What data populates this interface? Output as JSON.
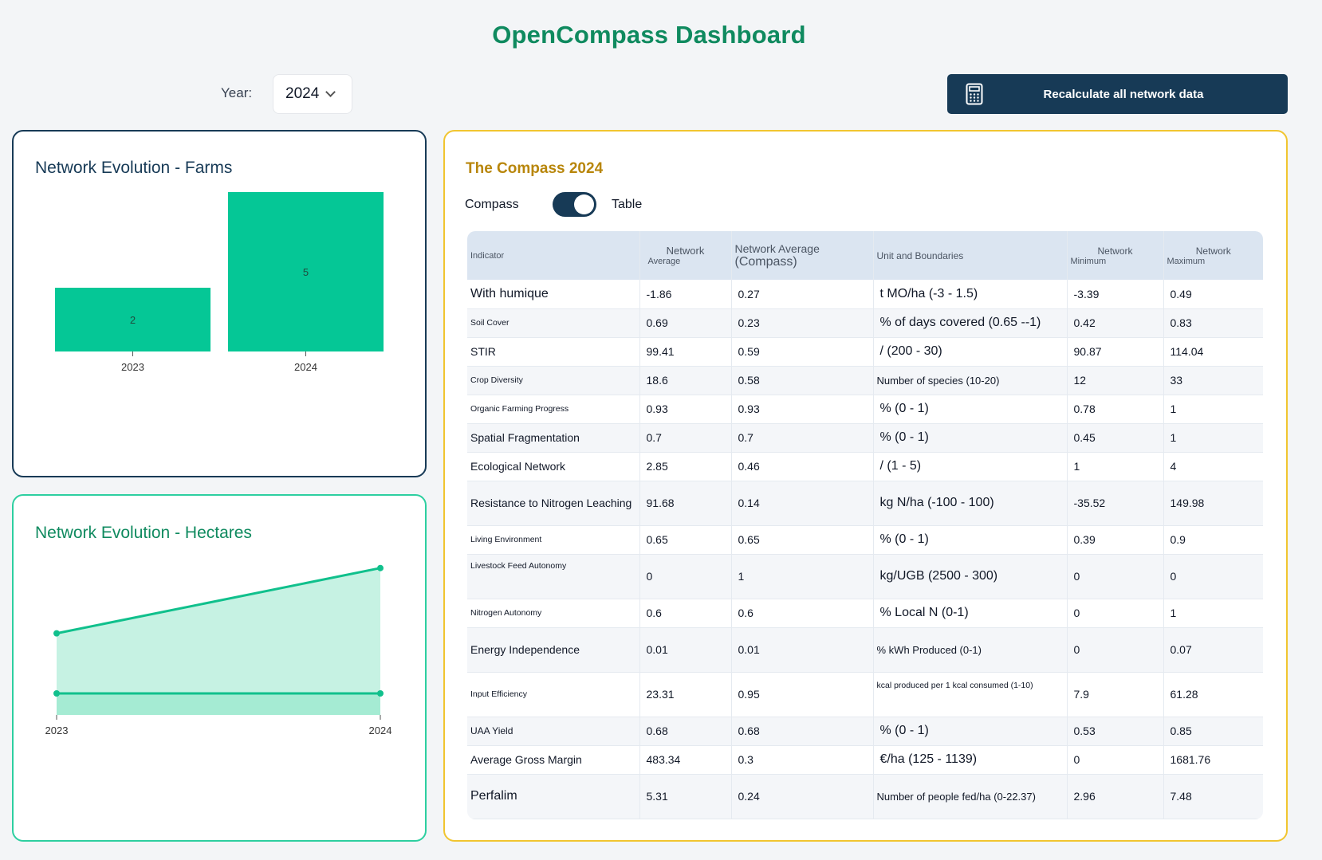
{
  "header": {
    "title": "OpenCompass Dashboard"
  },
  "year": {
    "label": "Year:",
    "value": "2024"
  },
  "recalc": {
    "label": "Recalculate all network data",
    "icon": "calculator-icon"
  },
  "farms": {
    "title": "Network Evolution - Farms",
    "chart_data": {
      "type": "bar",
      "categories": [
        "2023",
        "2024"
      ],
      "values": [
        2,
        5
      ],
      "color": "#05c796",
      "ylim": [
        0,
        5
      ]
    }
  },
  "hectares": {
    "title": "Network Evolution - Hectares",
    "chart_data": {
      "type": "area",
      "x": [
        "2023",
        "2024"
      ],
      "series": [
        {
          "values": [
            1.0,
            1.8
          ],
          "color": "#10c08c"
        },
        {
          "values": [
            0.4,
            0.4
          ],
          "color": "#10c08c"
        }
      ]
    }
  },
  "compass": {
    "title": "The Compass 2024",
    "toggle_left": "Compass",
    "toggle_right": "Table",
    "columns": {
      "indicator": "Indicator",
      "net_avg_1": "Network",
      "net_avg_2": "Average",
      "comp_avg_1": "Network Average",
      "comp_avg_2": "(Compass)",
      "unit": "Unit and Boundaries",
      "min_1": "Network",
      "min_2": "Minimum",
      "max_1": "Network",
      "max_2": "Maximum"
    },
    "rows": [
      {
        "indicator": "With humique",
        "avg": "-1.86",
        "comp": "0.27",
        "unit": "t MO/ha (-3 - 1.5)",
        "min": "-3.39",
        "max": "0.49"
      },
      {
        "indicator": "Soil Cover",
        "avg": "0.69",
        "comp": "0.23",
        "unit": "% of days covered (0.65 --1)",
        "min": "0.42",
        "max": "0.83"
      },
      {
        "indicator": "STIR",
        "avg": "99.41",
        "comp": "0.59",
        "unit": "/ (200 - 30)",
        "min": "90.87",
        "max": "114.04"
      },
      {
        "indicator": "Crop Diversity",
        "avg": "18.6",
        "comp": "0.58",
        "unit": "Number of species (10-20)",
        "min": "12",
        "max": "33"
      },
      {
        "indicator": "Organic Farming Progress",
        "avg": "0.93",
        "comp": "0.93",
        "unit": "% (0 - 1)",
        "min": "0.78",
        "max": "1"
      },
      {
        "indicator": "Spatial Fragmentation",
        "avg": "0.7",
        "comp": "0.7",
        "unit": "% (0 - 1)",
        "min": "0.45",
        "max": "1"
      },
      {
        "indicator": "Ecological Network",
        "avg": "2.85",
        "comp": "0.46",
        "unit": "/ (1 - 5)",
        "min": "1",
        "max": "4"
      },
      {
        "indicator": "Resistance to Nitrogen Leaching",
        "avg": "91.68",
        "comp": "0.14",
        "unit": "kg N/ha (-100 - 100)",
        "min": "-35.52",
        "max": "149.98"
      },
      {
        "indicator": "Living Environment",
        "avg": "0.65",
        "comp": "0.65",
        "unit": "% (0 - 1)",
        "min": "0.39",
        "max": "0.9"
      },
      {
        "indicator": "Livestock Feed Autonomy",
        "avg": "0",
        "comp": "1",
        "unit": "kg/UGB (2500 - 300)",
        "min": "0",
        "max": "0"
      },
      {
        "indicator": "Nitrogen Autonomy",
        "avg": "0.6",
        "comp": "0.6",
        "unit": "% Local N (0-1)",
        "min": "0",
        "max": "1"
      },
      {
        "indicator": "Energy Independence",
        "avg": "0.01",
        "comp": "0.01",
        "unit": "% kWh Produced (0-1)",
        "min": "0",
        "max": "0.07"
      },
      {
        "indicator": "Input Efficiency",
        "avg": "23.31",
        "comp": "0.95",
        "unit": "kcal produced per 1 kcal consumed (1-10)",
        "min": "7.9",
        "max": "61.28"
      },
      {
        "indicator": "UAA Yield",
        "avg": "0.68",
        "comp": "0.68",
        "unit": "% (0 - 1)",
        "min": "0.53",
        "max": "0.85"
      },
      {
        "indicator": "Average Gross Margin",
        "avg": "483.34",
        "comp": "0.3",
        "unit": "€/ha (125 - 1139)",
        "min": "0",
        "max": "1681.76"
      },
      {
        "indicator": "Perfalim",
        "avg": "5.31",
        "comp": "0.24",
        "unit": "Number of people fed/ha (0-22.37)",
        "min": "2.96",
        "max": "7.48"
      }
    ]
  }
}
